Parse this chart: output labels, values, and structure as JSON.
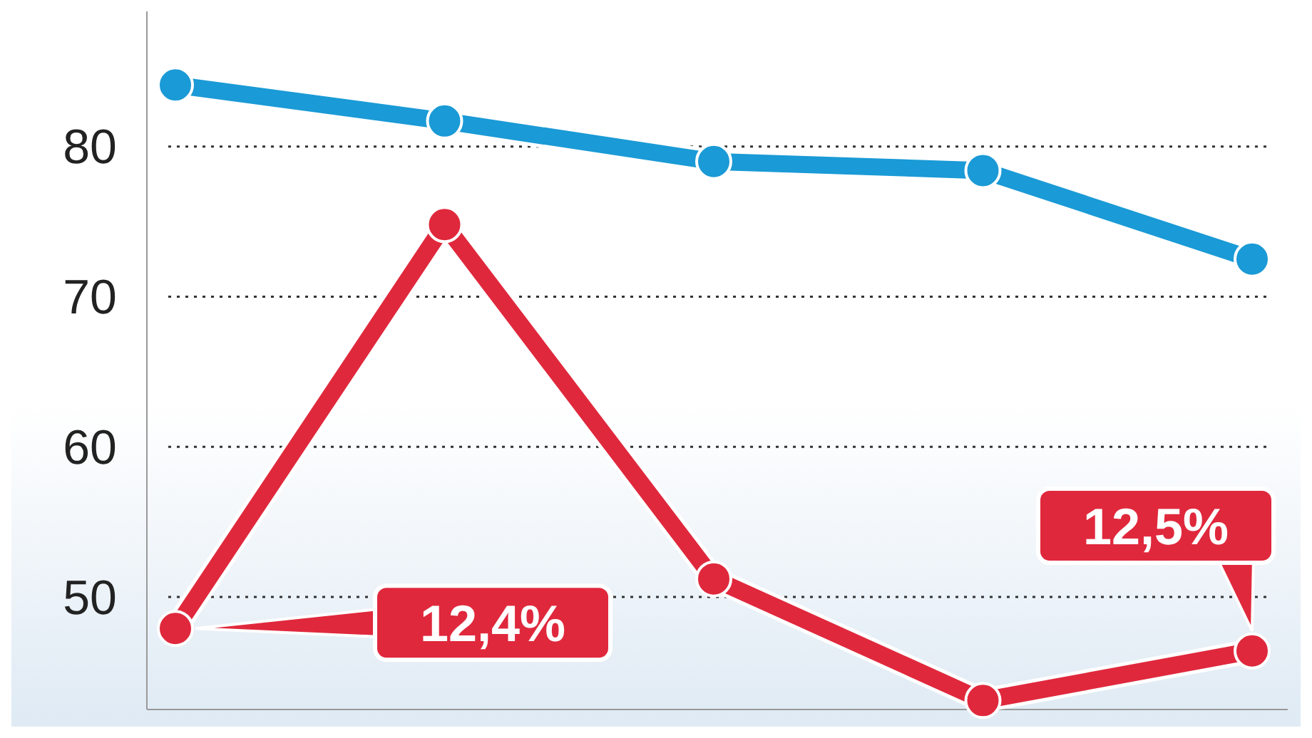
{
  "chart_data": {
    "type": "line",
    "categories": [
      null,
      null,
      null,
      null,
      null
    ],
    "series": [
      {
        "color": "#1a9ad6",
        "values": [
          84.1,
          81.7,
          79.0,
          78.4,
          72.5
        ]
      },
      {
        "color": "#e0283c",
        "values": [
          47.9,
          74.8,
          51.2,
          43.1,
          46.4
        ]
      }
    ],
    "ylim": [
      42.5,
      89
    ],
    "yticks": [
      50,
      60,
      70,
      80
    ],
    "grid": "y",
    "marker": "circle",
    "line_style": "solid",
    "tick_labels": "y",
    "annotations": [
      "12,4%",
      "12,5%"
    ]
  }
}
